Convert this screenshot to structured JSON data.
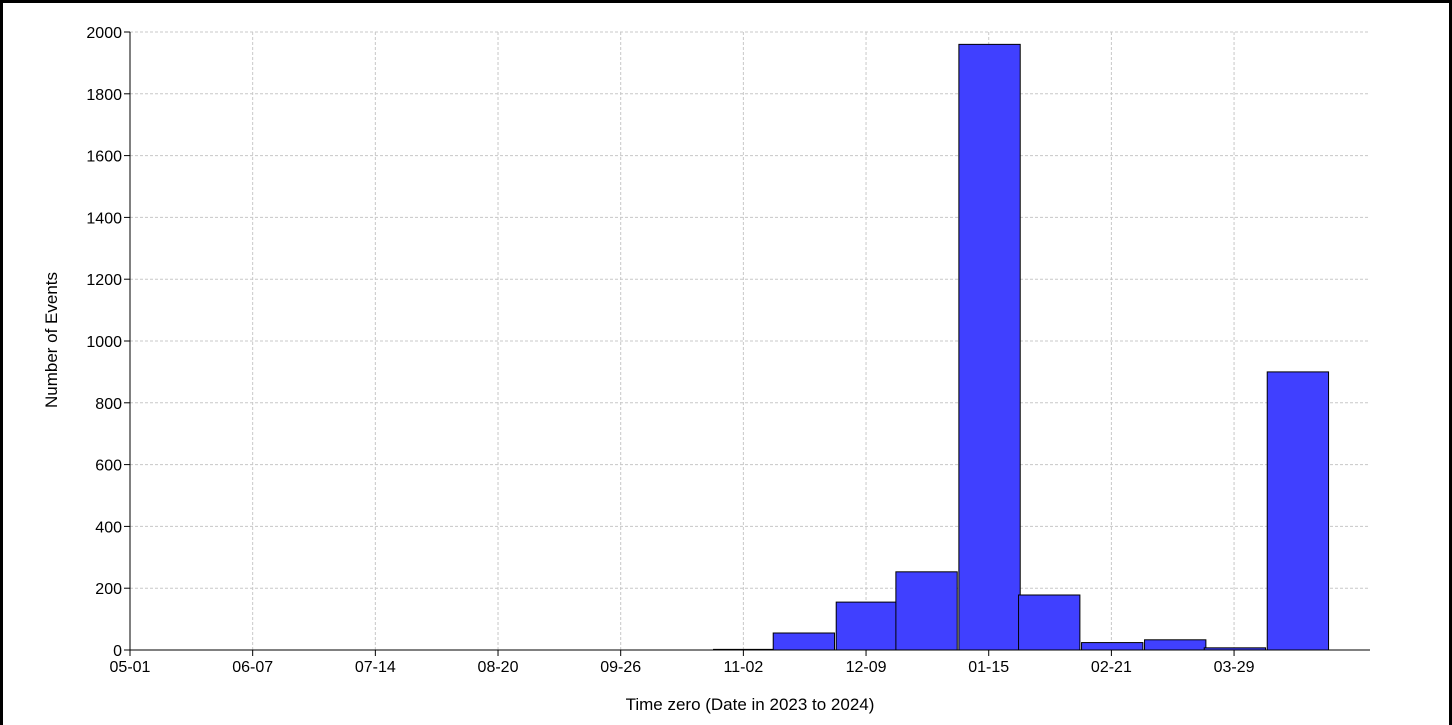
{
  "chart_data": {
    "type": "bar",
    "title": "",
    "xlabel": "Time zero (Date in 2023 to 2024)",
    "ylabel": "Number of Events",
    "x_tick_labels": [
      "05-01",
      "06-07",
      "07-14",
      "08-20",
      "09-26",
      "11-02",
      "12-09",
      "01-15",
      "02-21",
      "03-29"
    ],
    "x_tick_dates": [
      "2023-05-01",
      "2023-06-07",
      "2023-07-14",
      "2023-08-20",
      "2023-09-26",
      "2023-11-02",
      "2023-12-09",
      "2024-01-15",
      "2024-02-21",
      "2024-03-29"
    ],
    "xlim": [
      "2023-05-01",
      "2024-05-09"
    ],
    "ylim": [
      0,
      2000
    ],
    "y_ticks": [
      0,
      200,
      400,
      600,
      800,
      1000,
      1200,
      1400,
      1600,
      1800,
      2000
    ],
    "grid": true,
    "bin_width_days": 18.5,
    "bins": [
      {
        "start": "2023-10-24",
        "value": 2
      },
      {
        "start": "2023-11-11",
        "value": 55
      },
      {
        "start": "2023-11-30",
        "value": 155
      },
      {
        "start": "2023-12-18",
        "value": 253
      },
      {
        "start": "2024-01-06",
        "value": 1960
      },
      {
        "start": "2024-01-24",
        "value": 178
      },
      {
        "start": "2024-02-12",
        "value": 24
      },
      {
        "start": "2024-03-02",
        "value": 33
      },
      {
        "start": "2024-03-20",
        "value": 7
      },
      {
        "start": "2024-04-08",
        "value": 900
      }
    ],
    "bar_color": "#4040ff",
    "edge_color": "#000000"
  }
}
